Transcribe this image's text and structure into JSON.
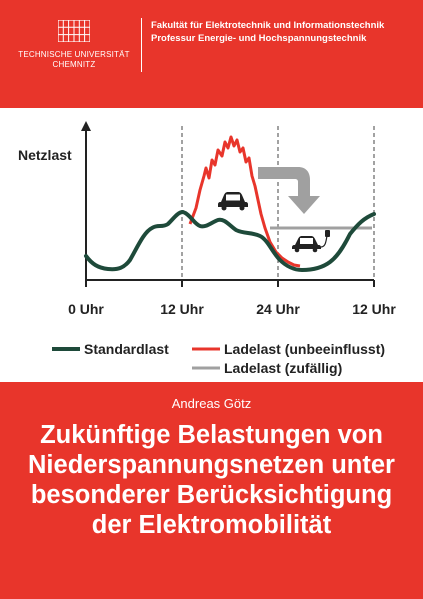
{
  "header": {
    "university_line1": "TECHNISCHE UNIVERSITÄT",
    "university_line2": "CHEMNITZ",
    "faculty_line1": "Fakultät für Elektrotechnik und Informationstechnik",
    "faculty_line2": "Professur Energie- und Hochspannungstechnik",
    "brand_color": "#e8352b"
  },
  "figure": {
    "ylabel": "Netzlast",
    "x_ticks": [
      "0 Uhr",
      "12 Uhr",
      "24 Uhr",
      "12 Uhr"
    ],
    "legend": {
      "standard": "Standardlast",
      "unbeeinflusst": "Ladelast (unbeeinflusst)",
      "zufaellig": "Ladelast (zufällig)"
    },
    "colors": {
      "standard": "#1e4a3a",
      "unbeeinflusst": "#e8352b",
      "zufaellig": "#a0a0a0"
    },
    "icons": [
      "car-icon",
      "charging-car-icon",
      "shift-arrow-icon"
    ]
  },
  "author": "Andreas Götz",
  "title_lines": [
    "Zukünftige Belastungen von",
    "Niederspannungsnetzen unter",
    "besonderer Berücksichtigung",
    "der Elektromobilität"
  ]
}
